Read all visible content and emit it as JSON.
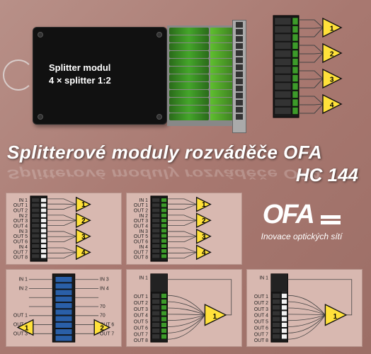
{
  "module_label_line1": "Splitter modul",
  "module_label_line2": "4 × splitter 1:2",
  "main_title": "Splitterové moduly rozváděče OFA",
  "sub_title": "HC 144",
  "logo_text": "OFA",
  "logo_tagline": "Inovace optických sítí",
  "connector_rows": 12,
  "colors": {
    "triangle_fill": "#ffe13a",
    "triangle_stroke": "#111",
    "module_body": "#1a1a1a",
    "port_green": "#3d9b2a",
    "port_white": "#f2f2f2",
    "port_dark": "#222",
    "port_blue": "#2a5fa8",
    "wire": "#444"
  },
  "top_right": {
    "ports": 12,
    "triangles": [
      1,
      2,
      3,
      4
    ]
  },
  "cell_r1c1": {
    "ports_left_labels": [
      "IN 1",
      "OUT 1",
      "OUT 2",
      "IN 2",
      "OUT 3",
      "OUT 4",
      "IN 3",
      "OUT 5",
      "OUT 6",
      "IN 4",
      "OUT 7",
      "OUT 8"
    ],
    "triangles": [
      1,
      2,
      3,
      4
    ]
  },
  "cell_r1c2": {
    "ports_left_labels": [
      "IN 1",
      "OUT 1",
      "OUT 2",
      "IN 2",
      "OUT 3",
      "OUT 4",
      "IN 3",
      "OUT 5",
      "OUT 6",
      "IN 4",
      "OUT 7",
      "OUT 8"
    ],
    "triangles": [
      1,
      2,
      3,
      4
    ]
  },
  "cell_r2c1": {
    "left_labels": [
      "IN 1",
      "IN 2",
      "",
      "",
      "OUT 1",
      "OUT 2",
      "OUT 3"
    ],
    "right_labels": [
      "IN 3",
      "IN 4",
      "",
      "70",
      "70",
      "OUT 6",
      "OUT 7"
    ],
    "triangles": [
      1,
      2
    ]
  },
  "cell_r2c2": {
    "ports_left_labels": [
      "IN 1",
      "",
      "",
      "OUT 1",
      "OUT 2",
      "OUT 3",
      "OUT 4",
      "OUT 5",
      "OUT 6",
      "OUT 7",
      "OUT 8"
    ],
    "triangles": [
      1
    ]
  },
  "cell_r2c3": {
    "ports_left_labels": [
      "IN 1",
      "",
      "",
      "OUT 1",
      "OUT 2",
      "OUT 3",
      "OUT 4",
      "OUT 5",
      "OUT 6",
      "OUT 7",
      "OUT 8"
    ],
    "triangles": [
      1
    ]
  }
}
